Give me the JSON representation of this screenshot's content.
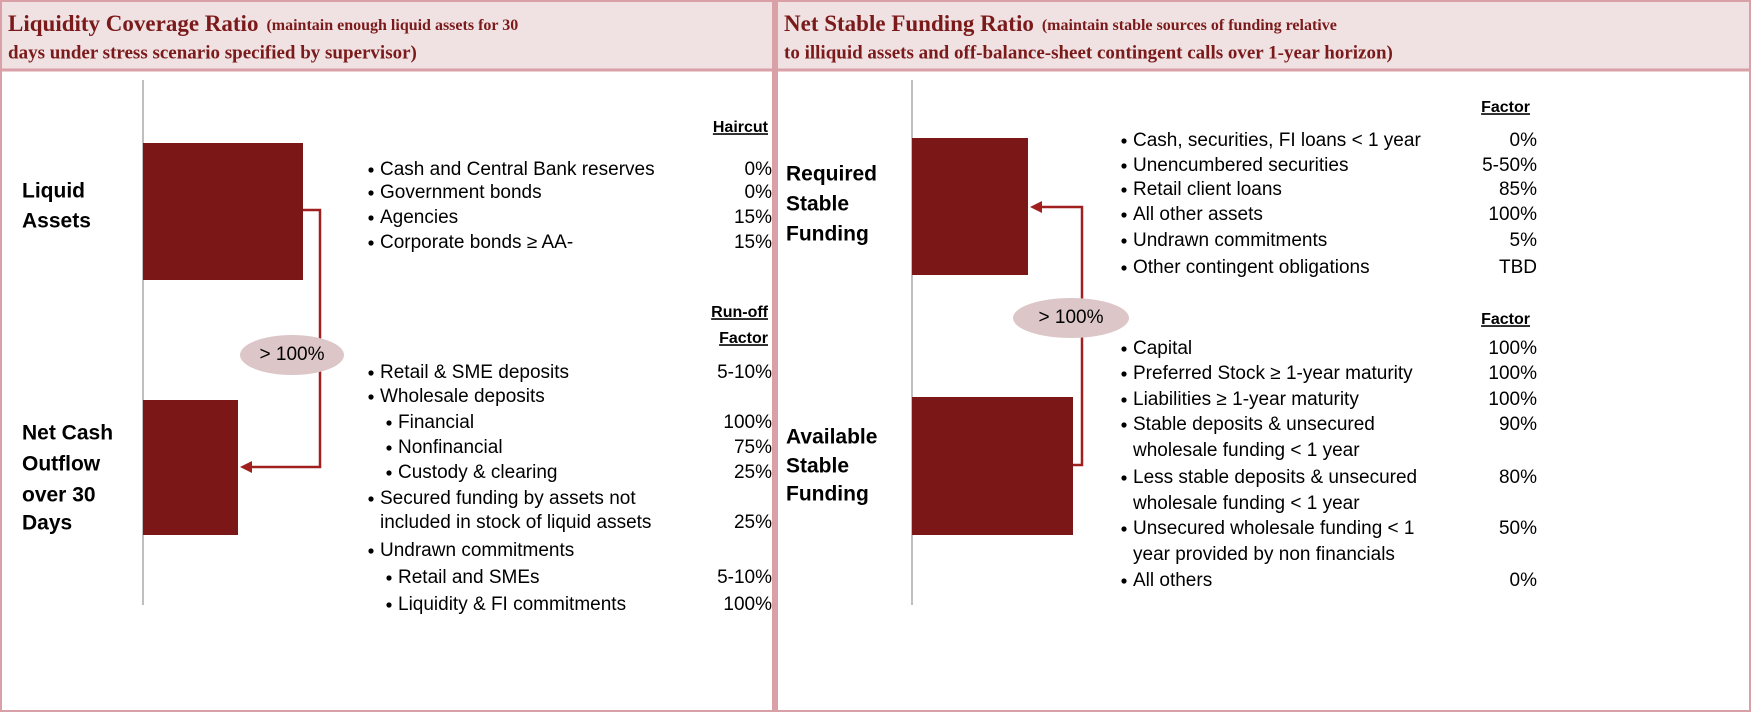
{
  "panels": [
    {
      "title": "Liquidity Coverage Ratio",
      "subtitle": [
        "(maintain enough liquid assets for 30",
        "days under stress scenario specified by supervisor)"
      ],
      "top_label": [
        "Liquid",
        "Assets"
      ],
      "bottom_label": [
        "Net Cash",
        "Outflow",
        "over 30",
        "Days"
      ],
      "ratio": "> 100%",
      "groups": [
        {
          "header": [
            "Haircut"
          ],
          "items": [
            {
              "text": [
                "Cash and Central Bank reserves"
              ],
              "value": "0%"
            },
            {
              "text": [
                "Government bonds"
              ],
              "value": "0%"
            },
            {
              "text": [
                "Agencies"
              ],
              "value": "15%"
            },
            {
              "text": [
                "Corporate bonds ≥ AA-"
              ],
              "value": "15%"
            }
          ]
        },
        {
          "header": [
            "Run-off",
            "Factor"
          ],
          "items": [
            {
              "text": [
                "Retail & SME deposits"
              ],
              "value": "5-10%"
            },
            {
              "text": [
                "Wholesale deposits"
              ]
            },
            {
              "text": [
                "Financial"
              ],
              "value": "100%"
            },
            {
              "text": [
                "Nonfinancial"
              ],
              "value": "75%"
            },
            {
              "text": [
                "Custody & clearing"
              ],
              "value": "25%"
            },
            {
              "text": [
                "Secured funding by assets not",
                "included in stock of liquid assets"
              ],
              "value": "25%"
            },
            {
              "text": [
                "Undrawn commitments"
              ]
            },
            {
              "text": [
                "Retail and SMEs"
              ],
              "value": "5-10%"
            },
            {
              "text": [
                "Liquidity & FI commitments"
              ],
              "value": "100%"
            }
          ]
        }
      ]
    },
    {
      "title": "Net Stable Funding Ratio",
      "subtitle": [
        "(maintain stable sources of funding relative",
        "to illiquid assets and off-balance-sheet contingent calls over 1-year horizon)"
      ],
      "top_label": [
        "Required",
        "Stable",
        "Funding"
      ],
      "bottom_label": [
        "Available",
        "Stable",
        "Funding"
      ],
      "ratio": "> 100%",
      "groups": [
        {
          "header": [
            "Factor"
          ],
          "items": [
            {
              "text": [
                "Cash, securities, FI loans < 1 year"
              ],
              "value": "0%"
            },
            {
              "text": [
                "Unencumbered securities"
              ],
              "value": "5-50%"
            },
            {
              "text": [
                "Retail client loans"
              ],
              "value": "85%"
            },
            {
              "text": [
                "All other assets"
              ],
              "value": "100%"
            },
            {
              "text": [
                "Undrawn commitments"
              ],
              "value": "5%"
            },
            {
              "text": [
                "Other contingent obligations"
              ],
              "value": "TBD"
            }
          ]
        },
        {
          "header": [
            "Factor"
          ],
          "items": [
            {
              "text": [
                "Capital"
              ],
              "value": "100%"
            },
            {
              "text": [
                "Preferred Stock ≥ 1-year maturity"
              ],
              "value": "100%"
            },
            {
              "text": [
                "Liabilities ≥ 1-year maturity"
              ],
              "value": "100%"
            },
            {
              "text": [
                "Stable deposits & unsecured",
                "wholesale funding < 1 year"
              ],
              "value": "90%"
            },
            {
              "text": [
                "Less stable deposits & unsecured",
                "wholesale funding < 1 year"
              ],
              "value": "80%"
            },
            {
              "text": [
                "Unsecured wholesale funding < 1",
                "year provided by non financials"
              ],
              "value": "50%"
            },
            {
              "text": [
                "All others"
              ],
              "value": "0%"
            }
          ]
        }
      ]
    }
  ]
}
